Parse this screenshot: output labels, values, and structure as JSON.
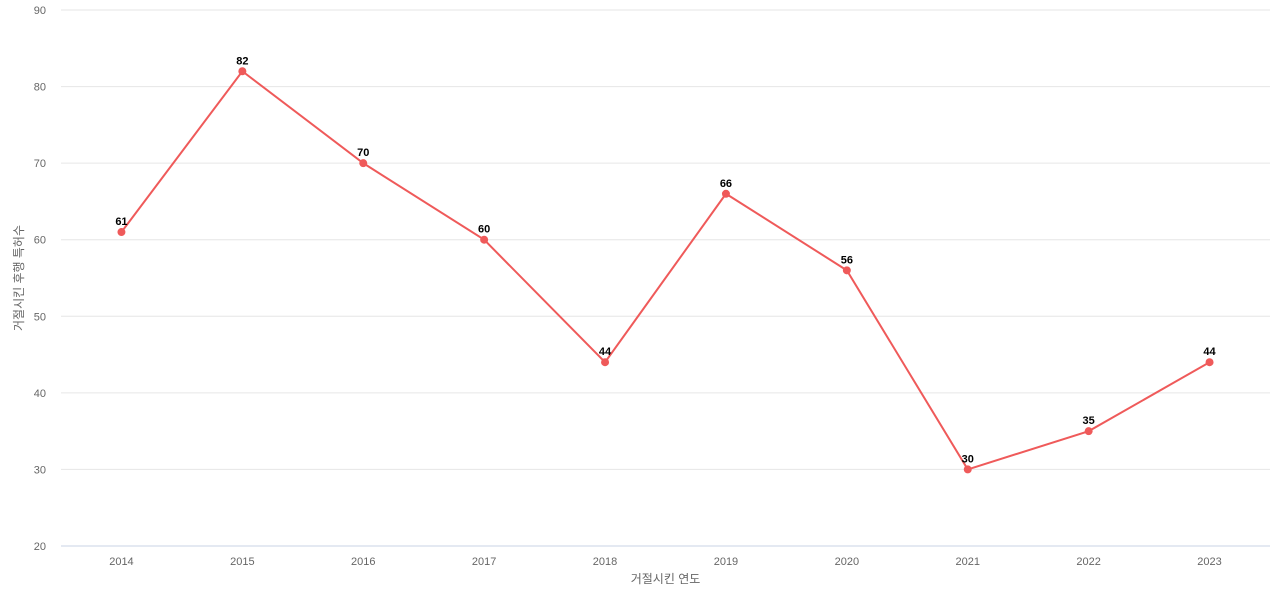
{
  "chart_data": {
    "type": "line",
    "categories": [
      "2014",
      "2015",
      "2016",
      "2017",
      "2018",
      "2019",
      "2020",
      "2021",
      "2022",
      "2023"
    ],
    "series": [
      {
        "values": [
          61,
          82,
          70,
          60,
          44,
          66,
          56,
          30,
          35,
          44
        ]
      }
    ],
    "xlabel": "거절시킨 연도",
    "ylabel": "거절시킨 후행 특허수",
    "ylim": [
      20,
      90
    ],
    "yticks": [
      20,
      30,
      40,
      50,
      60,
      70,
      80,
      90
    ],
    "grid": true,
    "color": "#ef5a5a",
    "data_labels": true
  }
}
